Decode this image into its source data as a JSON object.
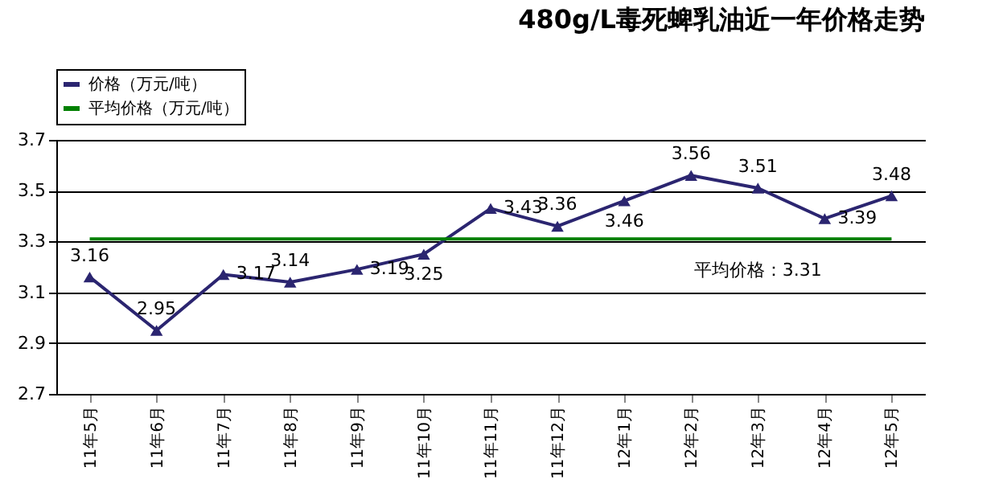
{
  "chart_data": {
    "type": "line",
    "title": "480g/L毒死蜱乳油近一年价格走势",
    "categories": [
      "11年5月",
      "11年6月",
      "11年7月",
      "11年8月",
      "11年9月",
      "11年10月",
      "11年11月",
      "11年12月",
      "12年1月",
      "12年2月",
      "12年3月",
      "12年4月",
      "12年5月"
    ],
    "series": [
      {
        "name": "价格（万元/吨）",
        "color": "#2b2570",
        "marker": "triangle",
        "values": [
          3.16,
          2.95,
          3.17,
          3.14,
          3.19,
          3.25,
          3.43,
          3.36,
          3.46,
          3.56,
          3.51,
          3.39,
          3.48
        ],
        "value_labels": [
          "3.16",
          "2.95",
          "3.17",
          "3.14",
          "3.19",
          "3.25",
          "3.43",
          "3.36",
          "3.46",
          "3.56",
          "3.51",
          "3.39",
          "3.48"
        ]
      },
      {
        "name": "平均价格（万元/吨）",
        "color": "#008000",
        "marker": "none",
        "values": [
          3.31,
          3.31,
          3.31,
          3.31,
          3.31,
          3.31,
          3.31,
          3.31,
          3.31,
          3.31,
          3.31,
          3.31,
          3.31
        ]
      }
    ],
    "annotations": [
      {
        "text": "平均价格：3.31",
        "x": "12年3月",
        "y": 3.31
      }
    ],
    "ylim": [
      2.7,
      3.7
    ],
    "yticks": [
      2.7,
      2.9,
      3.1,
      3.3,
      3.5,
      3.7
    ],
    "grid": "y",
    "legend": "top left"
  }
}
